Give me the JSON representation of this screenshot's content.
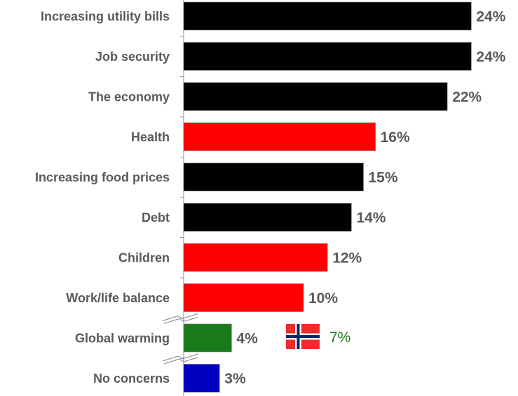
{
  "chart_data": {
    "type": "bar",
    "orientation": "horizontal",
    "title": "",
    "xlabel": "",
    "ylabel": "",
    "xlim": [
      0,
      25
    ],
    "grid": false,
    "legend": "none",
    "value_suffix": "%",
    "categories": [
      "Increasing utility bills",
      "Job security",
      "The economy",
      "Health",
      "Increasing food prices",
      "Debt",
      "Children",
      "Work/life balance",
      "Global warming",
      "No concerns"
    ],
    "values": [
      24,
      24,
      22,
      16,
      15,
      14,
      12,
      10,
      4,
      3
    ],
    "value_labels": [
      "24%",
      "24%",
      "22%",
      "16%",
      "15%",
      "14%",
      "12%",
      "10%",
      "4%",
      "3%"
    ],
    "bar_colors": [
      "#000000",
      "#000000",
      "#000000",
      "#ff0000",
      "#000000",
      "#000000",
      "#ff0000",
      "#ff0000",
      "#1a7a1a",
      "#0000c0"
    ],
    "axis_breaks_after": [
      "Work/life balance",
      "Global warming"
    ],
    "annotations": [
      {
        "category": "Global warming",
        "icon": "norway-flag-icon",
        "value": 7,
        "text": "7%",
        "color": "#1a7a1a"
      }
    ]
  }
}
